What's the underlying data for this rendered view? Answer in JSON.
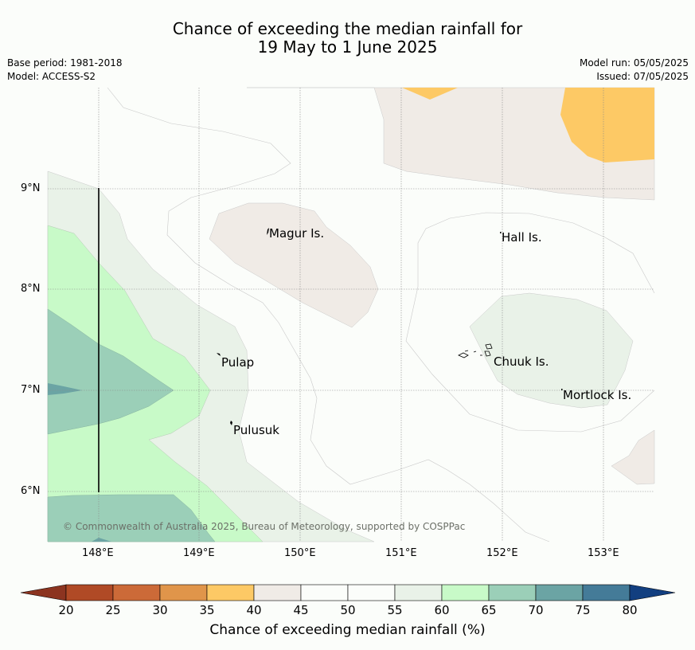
{
  "header": {
    "title_line1": "Chance of exceeding the median rainfall for",
    "title_line2": "19 May to 1 June 2025",
    "base_period": "Base period: 1981-2018",
    "model": "Model: ACCESS-S2",
    "model_run": "Model run: 05/05/2025",
    "issued": "Issued: 07/05/2025"
  },
  "map": {
    "latitude_labels": [
      "9°N",
      "8°N",
      "7°N",
      "6°N"
    ],
    "longitude_labels": [
      "148°E",
      "149°E",
      "150°E",
      "151°E",
      "152°E",
      "153°E"
    ],
    "places": [
      "Magur Is.",
      "Hall Is.",
      "Pulap",
      "Chuuk Is.",
      "Mortlock Is.",
      "Pulusuk"
    ],
    "copyright": "© Commonwealth of Australia 2025, Bureau of Meteorology, supported by COSPPac"
  },
  "colorbar": {
    "title": "Chance of exceeding median rainfall (%)",
    "ticks": [
      "20",
      "25",
      "30",
      "35",
      "40",
      "45",
      "50",
      "55",
      "60",
      "65",
      "70",
      "75",
      "80"
    ],
    "colors": [
      "#b04a26",
      "#cc6a38",
      "#e0954a",
      "#fdc965",
      "#f0ebe6",
      "#fbfdfa",
      "#fbfdfa",
      "#e9f2e8",
      "#c8fac8",
      "#9bcfb8",
      "#6ba4a4",
      "#447b98"
    ],
    "under_color": "#8c3420",
    "over_color": "#123f80"
  }
}
